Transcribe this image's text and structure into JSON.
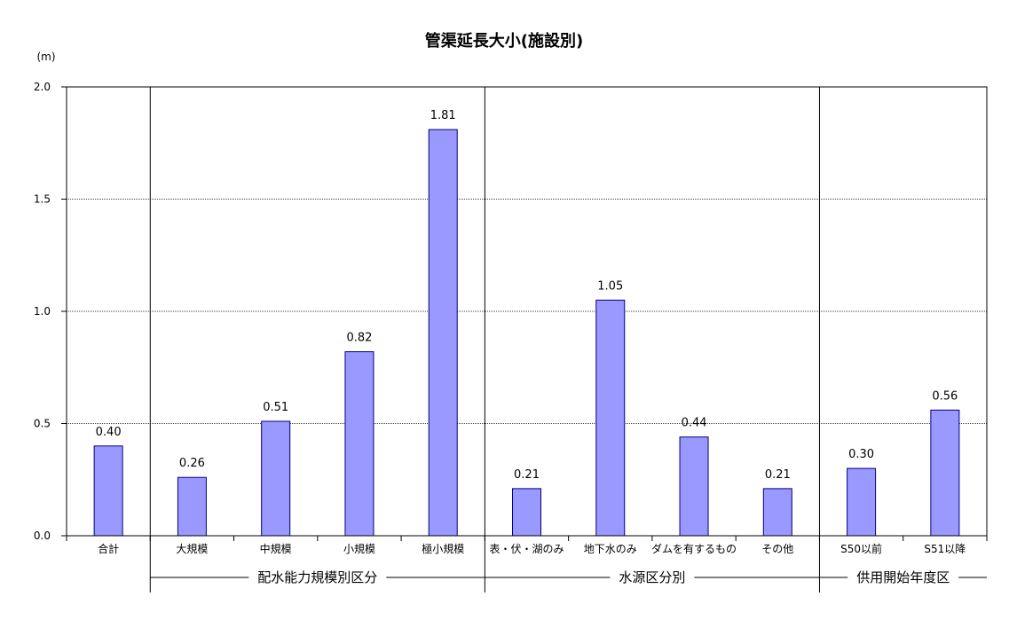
{
  "chart_data": {
    "type": "bar",
    "title": "管渠延長大小(施設別)",
    "ylabel": "(m)",
    "ylim": [
      0,
      2.0
    ],
    "yticks": [
      "0.0",
      "0.5",
      "1.0",
      "1.5",
      "2.0"
    ],
    "grid": true,
    "bar_color": "#9999ff",
    "bar_edge_color": "#000080",
    "categories": [
      "合計",
      "大規模",
      "中規模",
      "小規模",
      "極小規模",
      "表・伏・湖のみ",
      "地下水のみ",
      "ダムを有するもの",
      "その他",
      "S50以前",
      "S51以降"
    ],
    "values": [
      0.4,
      0.26,
      0.51,
      0.82,
      1.81,
      0.21,
      1.05,
      0.44,
      0.21,
      0.3,
      0.56
    ],
    "value_labels": [
      "0.40",
      "0.26",
      "0.51",
      "0.82",
      "1.81",
      "0.21",
      "1.05",
      "0.44",
      "0.21",
      "0.30",
      "0.56"
    ],
    "groups": [
      {
        "label": "配水能力規模別区分",
        "start": 1,
        "end": 4
      },
      {
        "label": "水源区分別",
        "start": 5,
        "end": 8
      },
      {
        "label": "供用開始年度区",
        "start": 9,
        "end": 10
      }
    ]
  }
}
